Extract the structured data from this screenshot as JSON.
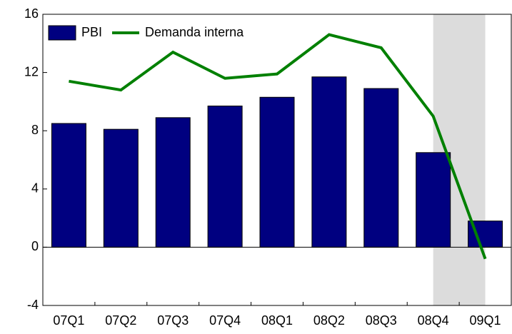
{
  "chart_data": {
    "type": "bar",
    "categories": [
      "07Q1",
      "07Q2",
      "07Q3",
      "07Q4",
      "08Q1",
      "08Q2",
      "08Q3",
      "08Q4",
      "09Q1"
    ],
    "series": [
      {
        "name": "PBI",
        "type": "bar",
        "color": "#000080",
        "values": [
          8.5,
          8.1,
          8.9,
          9.7,
          10.3,
          11.7,
          10.9,
          6.5,
          1.8
        ]
      },
      {
        "name": "Demanda interna",
        "type": "line",
        "color": "#008000",
        "values": [
          11.4,
          10.8,
          13.4,
          11.6,
          11.9,
          14.6,
          13.7,
          9.0,
          -0.8
        ]
      }
    ],
    "ylim": [
      -4,
      16
    ],
    "yticks": [
      -4,
      0,
      4,
      8,
      12,
      16
    ],
    "grid": false,
    "legend": "top-left",
    "shade": {
      "from": "08Q4",
      "to": "09Q1",
      "color": "#dcdcdc"
    }
  }
}
